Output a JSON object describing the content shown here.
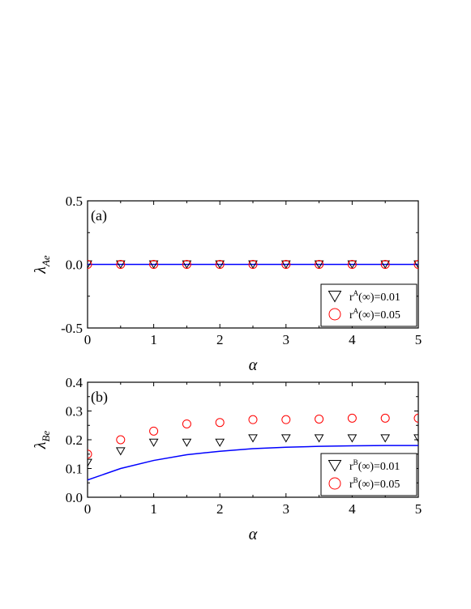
{
  "chart_data": [
    {
      "type": "scatter",
      "panel_label": "(a)",
      "xlabel": "α",
      "ylabel": {
        "main": "λ",
        "sub": "Ae"
      },
      "xlim": [
        0,
        5
      ],
      "ylim": [
        -0.5,
        0.5
      ],
      "xticks": [
        "0",
        "1",
        "2",
        "3",
        "4",
        "5"
      ],
      "yticks": [
        "-0.5",
        "0.0",
        "0.5"
      ],
      "x_values": [
        0,
        0.5,
        1,
        1.5,
        2,
        2.5,
        3,
        3.5,
        4,
        4.5,
        5
      ],
      "series": [
        {
          "label": {
            "base": "r",
            "sup": "A",
            "rest": "(∞)=0.01"
          },
          "marker": "triangle-down",
          "color": "#000000",
          "values": [
            0,
            0,
            0,
            0,
            0,
            0,
            0,
            0,
            0,
            0,
            0
          ]
        },
        {
          "label": {
            "base": "r",
            "sup": "A",
            "rest": "(∞)=0.05"
          },
          "marker": "circle",
          "color": "#ff0000",
          "values": [
            0,
            0,
            0,
            0,
            0,
            0,
            0,
            0,
            0,
            0,
            0
          ]
        }
      ],
      "curve": {
        "color": "#0000ff",
        "x": [
          0,
          5
        ],
        "y": [
          0,
          0
        ]
      },
      "legend_position": "lower-right"
    },
    {
      "type": "scatter",
      "panel_label": "(b)",
      "xlabel": "α",
      "ylabel": {
        "main": "λ",
        "sub": "Be"
      },
      "xlim": [
        0,
        5
      ],
      "ylim": [
        0.0,
        0.4
      ],
      "xticks": [
        "0",
        "1",
        "2",
        "3",
        "4",
        "5"
      ],
      "yticks": [
        "0.0",
        "0.1",
        "0.2",
        "0.3",
        "0.4"
      ],
      "x_values": [
        0,
        0.5,
        1,
        1.5,
        2,
        2.5,
        3,
        3.5,
        4,
        4.5,
        5
      ],
      "series": [
        {
          "label": {
            "base": "r",
            "sup": "B",
            "rest": "(∞)=0.01"
          },
          "marker": "triangle-down",
          "color": "#000000",
          "values": [
            0.12,
            0.16,
            0.19,
            0.19,
            0.19,
            0.205,
            0.205,
            0.205,
            0.205,
            0.205,
            0.205
          ]
        },
        {
          "label": {
            "base": "r",
            "sup": "B",
            "rest": "(∞)=0.05"
          },
          "marker": "circle",
          "color": "#ff0000",
          "values": [
            0.15,
            0.2,
            0.23,
            0.255,
            0.26,
            0.27,
            0.27,
            0.272,
            0.275,
            0.275,
            0.275
          ]
        }
      ],
      "curve": {
        "color": "#0000ff",
        "x": [
          0,
          0.5,
          1,
          1.5,
          2,
          2.5,
          3,
          3.5,
          4,
          4.5,
          5
        ],
        "y": [
          0.06,
          0.1,
          0.128,
          0.148,
          0.16,
          0.169,
          0.174,
          0.177,
          0.179,
          0.18,
          0.18
        ]
      },
      "legend_position": "lower-right"
    }
  ]
}
